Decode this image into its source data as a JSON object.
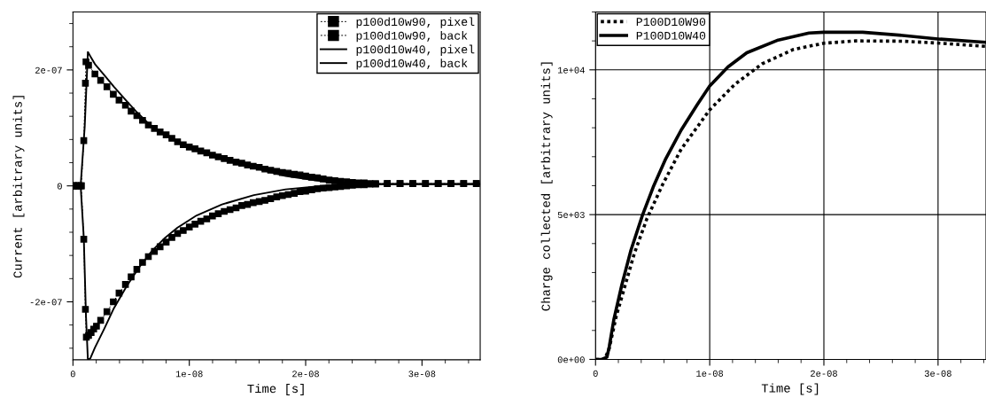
{
  "chart_data": [
    {
      "type": "line",
      "xlabel": "Time [s]",
      "ylabel": "Current [arbitrary units]",
      "xlim": [
        0,
        3.5e-08
      ],
      "ylim": [
        -3e-07,
        3e-07
      ],
      "xticks": [
        0,
        {
          "value": 1e-08,
          "label": "1e-08"
        },
        {
          "value": 2e-08,
          "label": "2e-08"
        },
        {
          "value": 3e-08,
          "label": "3e-08"
        }
      ],
      "yticks": [
        {
          "value": -2e-07,
          "label": "-2e-07"
        },
        0,
        {
          "value": 2e-07,
          "label": "2e-07"
        }
      ],
      "grid": false,
      "legend": "top right",
      "series": [
        {
          "name": "p100d10w90, pixel",
          "color": "#000000",
          "marker": "square",
          "line_style": "dashed",
          "x": [
            5e-11,
            2.5e-10,
            4.6e-10,
            7.1e-10,
            9.3e-10,
            1.07e-09,
            1.12e-09,
            1.34e-09,
            1.89e-09,
            2.38e-09,
            2.92e-09,
            3.47e-09,
            3.96e-09,
            4.51e-09,
            5e-09,
            5.49e-09,
            5.98e-09,
            6.48e-09,
            7e-09,
            7.49e-09,
            8.01e-09,
            8.5e-09,
            8.99e-09,
            9.48e-09,
            1e-08,
            1.049e-08,
            1.098e-08,
            1.15e-08,
            1.199e-08,
            1.249e-08,
            1.3e-08,
            1.35e-08,
            1.402e-08,
            1.451e-08,
            1.5e-08,
            1.549e-08,
            1.601e-08,
            1.65e-08,
            1.699e-08,
            1.751e-08,
            1.8e-08,
            1.85e-08,
            1.902e-08,
            1.951e-08,
            2e-08,
            2.052e-08,
            2.101e-08,
            2.15e-08,
            2.202e-08,
            2.251e-08,
            2.3e-08,
            2.352e-08,
            2.402e-08,
            2.451e-08,
            2.503e-08,
            2.552e-08,
            2.601e-08,
            2.702e-08,
            2.811e-08,
            2.921e-08,
            3.03e-08,
            3.139e-08,
            3.249e-08,
            3.358e-08,
            3.467e-08
          ],
          "values": [
            0,
            0,
            0,
            0,
            7.8e-08,
            1.77e-07,
            2.14e-07,
            2.08e-07,
            1.93e-07,
            1.82e-07,
            1.71e-07,
            1.58e-07,
            1.48e-07,
            1.39e-07,
            1.29e-07,
            1.21e-07,
            1.13e-07,
            1.05e-07,
            9.9e-08,
            9.3e-08,
            8.8e-08,
            8.2e-08,
            7.6e-08,
            7.1e-08,
            6.7e-08,
            6.4e-08,
            6e-08,
            5.7e-08,
            5.3e-08,
            5e-08,
            4.7e-08,
            4.4e-08,
            4.1e-08,
            3.9e-08,
            3.6e-08,
            3.4e-08,
            3.2e-08,
            2.9e-08,
            2.7e-08,
            2.5e-08,
            2.3e-08,
            2.2e-08,
            2e-08,
            1.9e-08,
            1.7e-08,
            1.5e-08,
            1.4e-08,
            1.2e-08,
            1e-08,
            9e-09,
            8e-09,
            7e-09,
            6e-09,
            5e-09,
            5e-09,
            4e-09,
            4e-09,
            4e-09,
            4e-09,
            4e-09,
            4e-09,
            4e-09,
            4e-09,
            4e-09,
            4e-09
          ]
        },
        {
          "name": "p100d10w90, back",
          "color": "#000000",
          "marker": "square",
          "line_style": "dashed",
          "x": [
            5e-11,
            2.5e-10,
            4.6e-10,
            7.1e-10,
            9.3e-10,
            1.07e-09,
            1.15e-09,
            1.34e-09,
            1.56e-09,
            1.78e-09,
            2.02e-09,
            2.38e-09,
            2.92e-09,
            3.47e-09,
            3.96e-09,
            4.51e-09,
            5e-09,
            5.49e-09,
            5.98e-09,
            6.48e-09,
            7e-09,
            7.49e-09,
            8.01e-09,
            8.5e-09,
            8.99e-09,
            9.48e-09,
            1e-08,
            1.049e-08,
            1.098e-08,
            1.15e-08,
            1.199e-08,
            1.249e-08,
            1.3e-08,
            1.35e-08,
            1.402e-08,
            1.451e-08,
            1.5e-08,
            1.549e-08,
            1.601e-08,
            1.65e-08,
            1.699e-08,
            1.751e-08,
            1.8e-08,
            1.85e-08,
            1.902e-08,
            1.951e-08,
            2e-08,
            2.052e-08,
            2.101e-08,
            2.15e-08,
            2.202e-08,
            2.251e-08,
            2.3e-08,
            2.352e-08,
            2.402e-08,
            2.451e-08,
            2.503e-08,
            2.552e-08,
            2.601e-08,
            2.702e-08,
            2.811e-08,
            2.921e-08,
            3.03e-08,
            3.139e-08,
            3.249e-08,
            3.358e-08,
            3.467e-08
          ],
          "values": [
            0,
            0,
            0,
            0,
            -9.2e-08,
            -2.13e-07,
            -2.61e-07,
            -2.58e-07,
            -2.53e-07,
            -2.47e-07,
            -2.42e-07,
            -2.32e-07,
            -2.17e-07,
            -2e-07,
            -1.85e-07,
            -1.7e-07,
            -1.57e-07,
            -1.44e-07,
            -1.32e-07,
            -1.22e-07,
            -1.13e-07,
            -1.05e-07,
            -9.7e-08,
            -8.9e-08,
            -8.2e-08,
            -7.7e-08,
            -7.1e-08,
            -6.6e-08,
            -6.1e-08,
            -5.7e-08,
            -5.2e-08,
            -4.8e-08,
            -4.4e-08,
            -4.1e-08,
            -3.8e-08,
            -3.4e-08,
            -3.2e-08,
            -2.9e-08,
            -2.7e-08,
            -2.5e-08,
            -2.2e-08,
            -1.9e-08,
            -1.7e-08,
            -1.5e-08,
            -1.3e-08,
            -1e-08,
            -9e-09,
            -7e-09,
            -5e-09,
            -4e-09,
            -3e-09,
            -2e-09,
            -1e-09,
            0,
            1e-09,
            2e-09,
            2e-09,
            3e-09,
            3e-09,
            4e-09,
            4e-09,
            4e-09,
            4e-09,
            4e-09,
            4e-09,
            4e-09,
            4e-09
          ]
        },
        {
          "name": "p100d10w40, pixel",
          "color": "#000000",
          "marker": "none",
          "line_style": "solid",
          "x": [
            0,
            6.6e-10,
            1.01e-09,
            1.28e-09,
            1.48e-09,
            1.89e-09,
            2.7e-09,
            3.52e-09,
            4.62e-09,
            5.44e-09,
            6.53e-09,
            7.62e-09,
            8.99e-09,
            1.063e-08,
            1.281e-08,
            1.555e-08,
            1.828e-08,
            2.101e-08,
            2.374e-08,
            2.648e-08,
            3.5e-08
          ],
          "values": [
            0,
            0,
            1.02e-07,
            2.31e-07,
            2.24e-07,
            2.1e-07,
            1.91e-07,
            1.71e-07,
            1.46e-07,
            1.28e-07,
            1.07e-07,
            9.1e-08,
            7.6e-08,
            6.3e-08,
            4.7e-08,
            3.1e-08,
            1.7e-08,
            9e-09,
            4e-09,
            3e-09,
            3e-09
          ]
        },
        {
          "name": "p100d10w40, back",
          "color": "#000000",
          "marker": "none",
          "line_style": "solid",
          "x": [
            0,
            6.6e-10,
            9.3e-10,
            1.12e-09,
            1.28e-09,
            1.48e-09,
            1.89e-09,
            2.7e-09,
            3.52e-09,
            4.62e-09,
            5.71e-09,
            6.8e-09,
            7.9e-09,
            8.99e-09,
            1.063e-08,
            1.281e-08,
            1.555e-08,
            1.828e-08,
            2.046e-08,
            2.265e-08,
            2.374e-08,
            3.5e-08
          ],
          "values": [
            0,
            0,
            -8.9e-08,
            -2.25e-07,
            -2.99e-07,
            -2.98e-07,
            -2.79e-07,
            -2.46e-07,
            -2.11e-07,
            -1.73e-07,
            -1.4e-07,
            -1.12e-07,
            -9e-08,
            -7.2e-08,
            -5.1e-08,
            -3.2e-08,
            -1.6e-08,
            -6e-09,
            -2e-09,
            2e-09,
            3e-09,
            3e-09
          ]
        }
      ]
    },
    {
      "type": "line",
      "xlabel": "Time [s]",
      "ylabel": "Charge collected [arbitrary units]",
      "xlim": [
        0,
        3.42e-08
      ],
      "ylim": [
        0,
        12000
      ],
      "xticks": [
        0,
        {
          "value": 1e-08,
          "label": "1e-08"
        },
        {
          "value": 2e-08,
          "label": "2e-08"
        },
        {
          "value": 3e-08,
          "label": "3e-08"
        }
      ],
      "yticks": [
        {
          "value": 0,
          "label": "0e+00"
        },
        {
          "value": 5000,
          "label": "5e+03"
        },
        {
          "value": 10000,
          "label": "1e+04"
        }
      ],
      "grid": true,
      "legend": "top left",
      "series": [
        {
          "name": "P100D10W90",
          "color": "#000000",
          "marker": "none",
          "line_style": "dotted",
          "x": [
            0,
            8e-10,
            1.2e-09,
            1.8e-09,
            2.6e-09,
            3.4e-09,
            4.5e-09,
            5.9e-09,
            7.5e-09,
            1e-08,
            1.22e-08,
            1.46e-08,
            1.73e-08,
            2e-08,
            2.28e-08,
            2.69e-08,
            3.02e-08,
            3.42e-08
          ],
          "values": [
            0,
            0,
            380,
            1470,
            2570,
            3660,
            4860,
            6060,
            7260,
            8620,
            9500,
            10210,
            10700,
            10920,
            11000,
            10990,
            10920,
            10810
          ]
        },
        {
          "name": "P100D10W40",
          "color": "#000000",
          "marker": "none",
          "line_style": "solid",
          "x": [
            0,
            5.5e-10,
            1e-09,
            1.2e-09,
            1.6e-09,
            2.3e-09,
            3.1e-09,
            4.1e-09,
            5.05e-09,
            6.15e-09,
            7.5e-09,
            8.9e-09,
            1e-08,
            1.16e-08,
            1.325e-08,
            1.6e-08,
            1.87e-08,
            2e-08,
            2.34e-08,
            2.69e-08,
            3.02e-08,
            3.42e-08
          ],
          "values": [
            0,
            0,
            80,
            440,
            1370,
            2570,
            3770,
            4970,
            5950,
            6930,
            7920,
            8790,
            9440,
            10100,
            10590,
            11030,
            11270,
            11300,
            11300,
            11190,
            11060,
            10950
          ]
        }
      ]
    }
  ]
}
